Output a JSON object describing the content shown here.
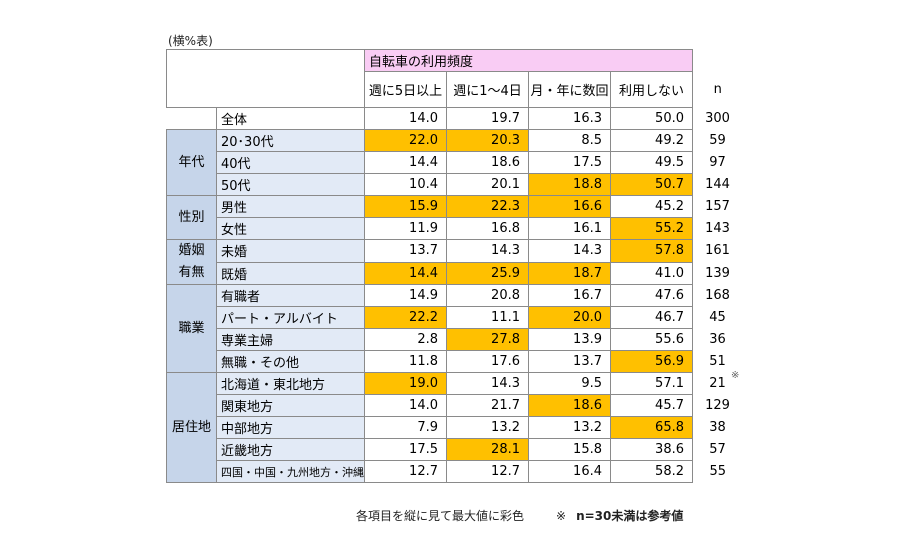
{
  "table_note": "(横%表)",
  "header": {
    "frequency_label": "自転車の利用頻度",
    "columns": [
      "週に5日以上",
      "週に1～4日",
      "月・年に数回",
      "利用しない"
    ],
    "n_label": "n"
  },
  "total": {
    "label": "全体",
    "values": [
      "14.0",
      "19.7",
      "16.3",
      "50.0"
    ],
    "n": "300"
  },
  "groups": [
    {
      "category": "年代",
      "rows": [
        {
          "label": "20･30代",
          "values": [
            "22.0",
            "20.3",
            "8.5",
            "49.2"
          ],
          "n": "59",
          "highlight": [
            true,
            true,
            false,
            false
          ]
        },
        {
          "label": "40代",
          "values": [
            "14.4",
            "18.6",
            "17.5",
            "49.5"
          ],
          "n": "97",
          "highlight": [
            false,
            false,
            false,
            false
          ]
        },
        {
          "label": "50代",
          "values": [
            "10.4",
            "20.1",
            "18.8",
            "50.7"
          ],
          "n": "144",
          "highlight": [
            false,
            false,
            true,
            true
          ]
        }
      ]
    },
    {
      "category": "性別",
      "rows": [
        {
          "label": "男性",
          "values": [
            "15.9",
            "22.3",
            "16.6",
            "45.2"
          ],
          "n": "157",
          "highlight": [
            true,
            true,
            true,
            false
          ]
        },
        {
          "label": "女性",
          "values": [
            "11.9",
            "16.8",
            "16.1",
            "55.2"
          ],
          "n": "143",
          "highlight": [
            false,
            false,
            false,
            true
          ]
        }
      ]
    },
    {
      "category": "婚姻\n有無",
      "rows": [
        {
          "label": "未婚",
          "values": [
            "13.7",
            "14.3",
            "14.3",
            "57.8"
          ],
          "n": "161",
          "highlight": [
            false,
            false,
            false,
            true
          ]
        },
        {
          "label": "既婚",
          "values": [
            "14.4",
            "25.9",
            "18.7",
            "41.0"
          ],
          "n": "139",
          "highlight": [
            true,
            true,
            true,
            false
          ]
        }
      ]
    },
    {
      "category": "職業",
      "rows": [
        {
          "label": "有職者",
          "values": [
            "14.9",
            "20.8",
            "16.7",
            "47.6"
          ],
          "n": "168",
          "highlight": [
            false,
            false,
            false,
            false
          ]
        },
        {
          "label": "パート・アルバイト",
          "values": [
            "22.2",
            "11.1",
            "20.0",
            "46.7"
          ],
          "n": "45",
          "highlight": [
            true,
            false,
            true,
            false
          ]
        },
        {
          "label": "専業主婦",
          "values": [
            "2.8",
            "27.8",
            "13.9",
            "55.6"
          ],
          "n": "36",
          "highlight": [
            false,
            true,
            false,
            false
          ]
        },
        {
          "label": "無職・その他",
          "values": [
            "11.8",
            "17.6",
            "13.7",
            "56.9"
          ],
          "n": "51",
          "highlight": [
            false,
            false,
            false,
            true
          ]
        }
      ]
    },
    {
      "category": "居住地",
      "rows": [
        {
          "label": "北海道・東北地方",
          "values": [
            "19.0",
            "14.3",
            "9.5",
            "57.1"
          ],
          "n": "21",
          "highlight": [
            true,
            false,
            false,
            false
          ],
          "reference": true
        },
        {
          "label": "関東地方",
          "values": [
            "14.0",
            "21.7",
            "18.6",
            "45.7"
          ],
          "n": "129",
          "highlight": [
            false,
            false,
            true,
            false
          ]
        },
        {
          "label": "中部地方",
          "values": [
            "7.9",
            "13.2",
            "13.2",
            "65.8"
          ],
          "n": "38",
          "highlight": [
            false,
            false,
            false,
            true
          ]
        },
        {
          "label": "近畿地方",
          "values": [
            "17.5",
            "28.1",
            "15.8",
            "38.6"
          ],
          "n": "57",
          "highlight": [
            false,
            true,
            false,
            false
          ]
        },
        {
          "label": "四国・中国・九州地方・沖縄",
          "values": [
            "12.7",
            "12.7",
            "16.4",
            "58.2"
          ],
          "n": "55",
          "highlight": [
            false,
            false,
            false,
            false
          ],
          "small": true
        }
      ]
    }
  ],
  "reference_mark": "※",
  "footer": {
    "left_note": "各項目を縦に見て最大値に彩色",
    "right_mark": "※",
    "right_note": "n=30未満は参考値"
  },
  "colors": {
    "highlight": "#ffc000",
    "header": "#f9ccf4",
    "category": "#c6d5ea",
    "label": "#e2eaf6"
  }
}
